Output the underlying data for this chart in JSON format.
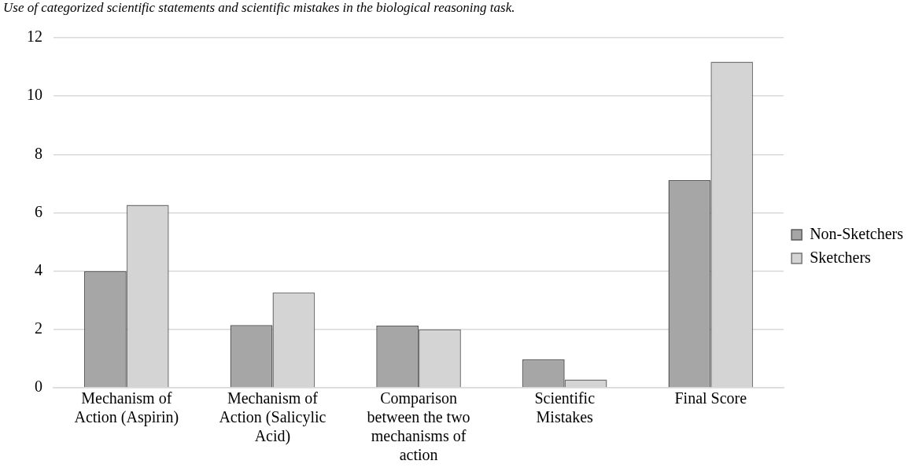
{
  "chart_data": {
    "type": "bar",
    "title": "Use of categorized scientific statements and scientific mistakes in the biological reasoning task.",
    "categories": [
      "Mechanism of Action (Aspirin)",
      "Mechanism of Action (Salicylic Acid)",
      "Comparison between the two mechanisms of action",
      "Scientific Mistakes",
      "Final Score"
    ],
    "series": [
      {
        "name": "Non-Sketchers",
        "color": "#a6a6a6",
        "values": [
          4.0,
          2.15,
          2.13,
          0.98,
          7.12
        ]
      },
      {
        "name": "Sketchers",
        "color": "#d4d4d4",
        "values": [
          6.27,
          3.27,
          2.0,
          0.28,
          11.18
        ]
      }
    ],
    "ylim": [
      0,
      12
    ],
    "yticks": [
      0,
      2,
      4,
      6,
      8,
      10,
      12
    ],
    "grid": "y",
    "legend": "right"
  }
}
